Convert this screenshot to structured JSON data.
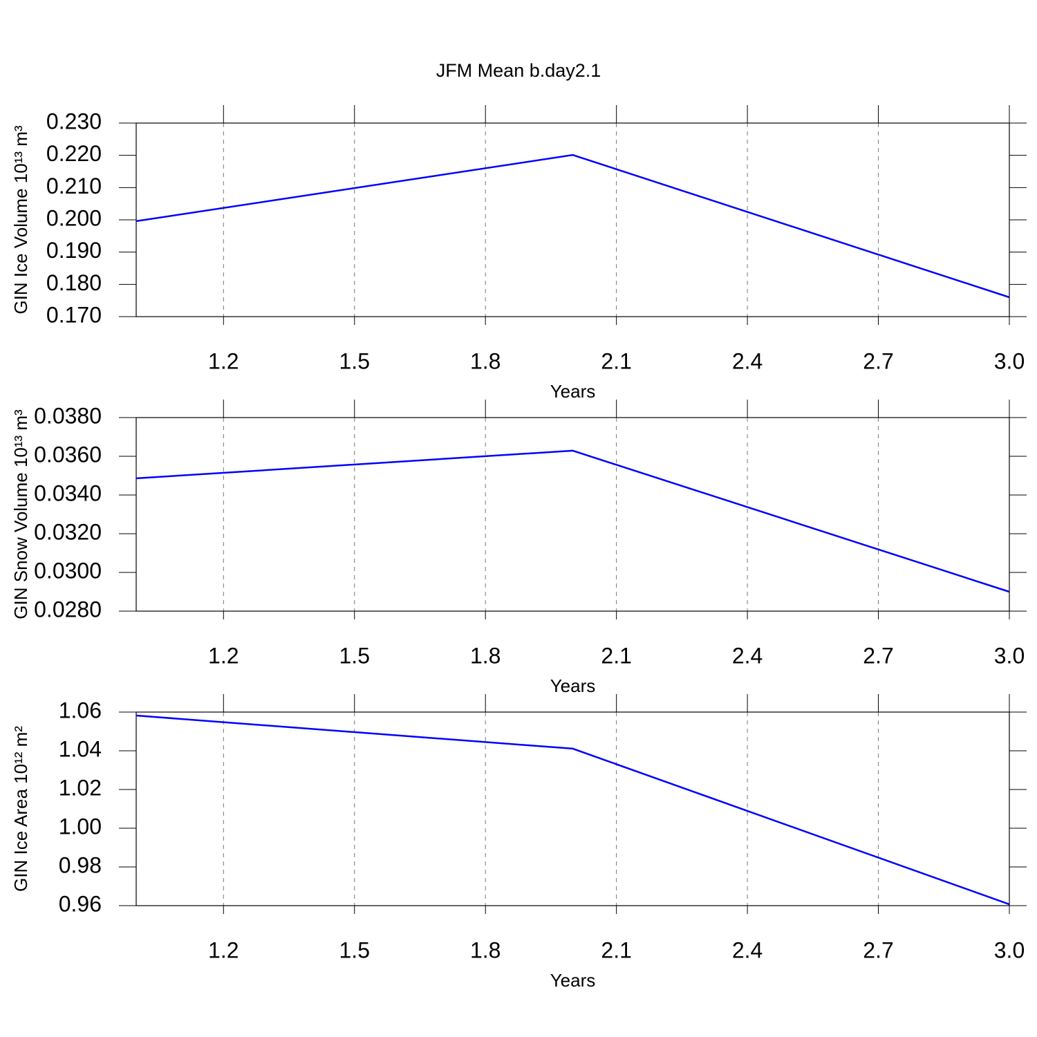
{
  "chart_data": [
    {
      "type": "line",
      "title": "JFM Mean b.day2.1",
      "x": [
        1,
        2,
        3
      ],
      "series": [
        {
          "color": "#0000ff",
          "values": [
            0.1996,
            0.2201,
            0.176
          ]
        }
      ],
      "xlabel": "Years",
      "ylabel": "GIN Ice Volume 10¹³ m³",
      "xlim": [
        1,
        3
      ],
      "ylim": [
        0.17,
        0.23
      ],
      "xticks": [
        1.2,
        1.5,
        1.8,
        2.1,
        2.4,
        2.7,
        {
          "value": 3,
          "label": "3.0"
        }
      ],
      "yticks": [
        {
          "value": 0.17,
          "label": "0.170"
        },
        {
          "value": 0.18,
          "label": "0.180"
        },
        {
          "value": 0.19,
          "label": "0.190"
        },
        {
          "value": 0.2,
          "label": "0.200"
        },
        {
          "value": 0.21,
          "label": "0.210"
        },
        {
          "value": 0.22,
          "label": "0.220"
        },
        {
          "value": 0.23,
          "label": "0.230"
        }
      ],
      "grid": "x"
    },
    {
      "type": "line",
      "x": [
        1,
        2,
        3
      ],
      "series": [
        {
          "color": "#0000ff",
          "values": [
            0.03486,
            0.03629,
            0.029
          ]
        }
      ],
      "xlabel": "Years",
      "ylabel": "GIN Snow Volume 10¹³ m³",
      "xlim": [
        1,
        3
      ],
      "ylim": [
        0.028,
        0.038
      ],
      "xticks": [
        1.2,
        1.5,
        1.8,
        2.1,
        2.4,
        2.7,
        {
          "value": 3,
          "label": "3.0"
        }
      ],
      "yticks": [
        {
          "value": 0.028,
          "label": "0.0280"
        },
        {
          "value": 0.03,
          "label": "0.0300"
        },
        {
          "value": 0.032,
          "label": "0.0320"
        },
        {
          "value": 0.034,
          "label": "0.0340"
        },
        {
          "value": 0.036,
          "label": "0.0360"
        },
        {
          "value": 0.038,
          "label": "0.0380"
        }
      ],
      "grid": "x"
    },
    {
      "type": "line",
      "x": [
        1,
        2,
        3
      ],
      "series": [
        {
          "color": "#0000ff",
          "values": [
            1.0582,
            1.0411,
            0.9607
          ]
        }
      ],
      "xlabel": "Years",
      "ylabel": "GIN Ice Area 10¹² m²",
      "xlim": [
        1,
        3
      ],
      "ylim": [
        0.96,
        1.06
      ],
      "xticks": [
        1.2,
        1.5,
        1.8,
        2.1,
        2.4,
        2.7,
        {
          "value": 3,
          "label": "3.0"
        }
      ],
      "yticks": [
        0.96,
        0.98,
        {
          "value": 1,
          "label": "1.00"
        },
        1.02,
        1.04,
        1.06
      ],
      "grid": "x"
    }
  ]
}
